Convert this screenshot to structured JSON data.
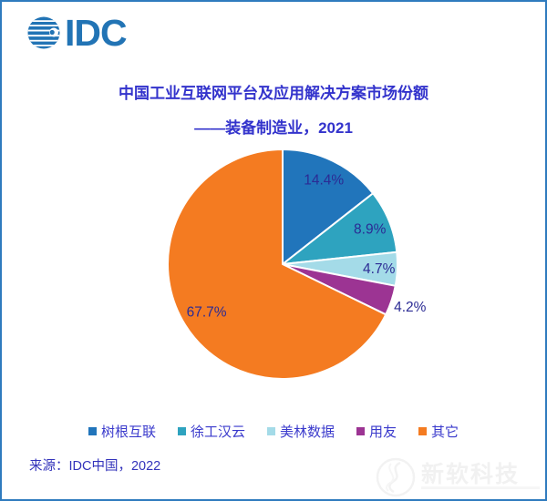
{
  "header": {
    "logo_text": "IDC"
  },
  "chart_data": {
    "type": "pie",
    "title": "中国工业互联网平台及应用解决方案市场份额",
    "subtitle": "——装备制造业，2021",
    "categories": [
      "树根互联",
      "徐工汉云",
      "美林数据",
      "用友",
      "其它"
    ],
    "values": [
      14.4,
      8.9,
      4.7,
      4.2,
      67.7
    ],
    "labels": [
      "14.4%",
      "8.9%",
      "4.7%",
      "4.2%",
      "67.7%"
    ],
    "colors": [
      "#2175BB",
      "#2EA3BF",
      "#A4DBE8",
      "#9C3493",
      "#F47B21"
    ],
    "start_angle_deg": 0,
    "direction": "clockwise",
    "legend_position": "bottom",
    "label_color": "#2B2B94"
  },
  "footer": {
    "source": "来源：IDC中国，2022"
  },
  "watermark": {
    "text": "新软科技"
  },
  "theme": {
    "border_color": "#2F7BBE",
    "title_color": "#3333CC",
    "legend_text_color": "#3A3ACC",
    "logo_blue": "#2274B5",
    "background": "#FFFFFF"
  }
}
